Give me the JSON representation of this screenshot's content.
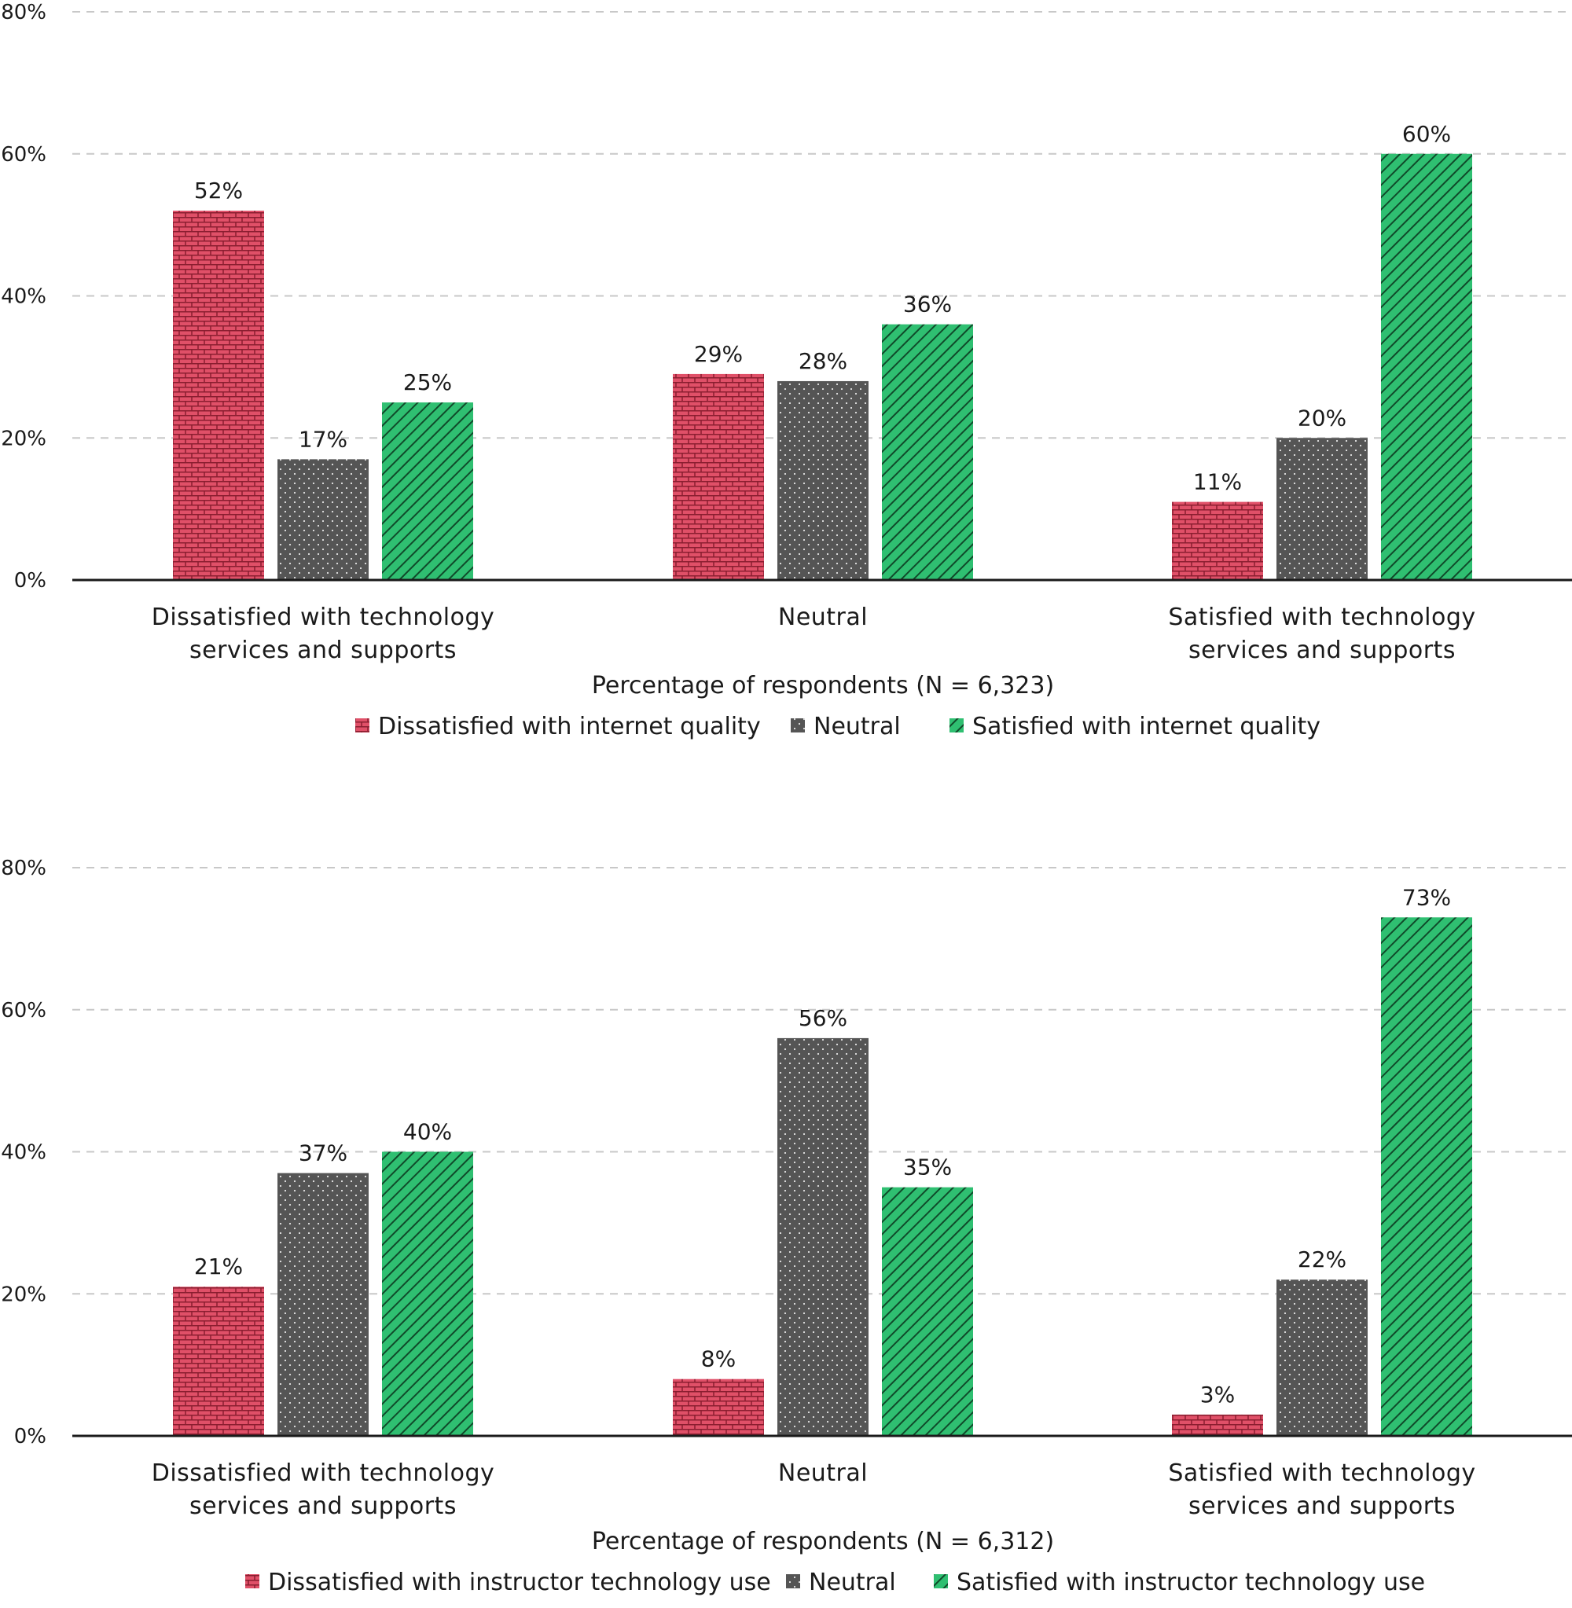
{
  "colors": {
    "dissatisfied": "#e05068",
    "neutral": "#555555",
    "satisfied": "#2fbf71",
    "dissatisfied_pattern": "#8a1e30",
    "neutral_pattern": "#e6e6e6",
    "satisfied_pattern": "#104a2a",
    "text": "#1a1a1a",
    "grid": "#c8c8c8"
  },
  "chart_data": [
    {
      "type": "bar",
      "categories": [
        [
          "Dissatisfied with technology",
          "services and supports"
        ],
        [
          "Neutral"
        ],
        [
          "Satisfied with technology",
          "services and supports"
        ]
      ],
      "xlabel": "Percentage of respondents (N = 6,323)",
      "ylim": [
        0,
        80
      ],
      "yticks": [
        "0%",
        "20%",
        "40%",
        "60%",
        "80%"
      ],
      "grid": true,
      "legend_position": "bottom",
      "series": [
        {
          "name": "Dissatisfied with internet quality",
          "key": "dissatisfied",
          "values": [
            52,
            29,
            11
          ],
          "labels": [
            "52%",
            "29%",
            "11%"
          ]
        },
        {
          "name": "Neutral",
          "key": "neutral",
          "values": [
            17,
            28,
            20
          ],
          "labels": [
            "17%",
            "28%",
            "20%"
          ]
        },
        {
          "name": "Satisfied with internet quality",
          "key": "satisfied",
          "values": [
            25,
            36,
            60
          ],
          "labels": [
            "25%",
            "36%",
            "60%"
          ]
        }
      ]
    },
    {
      "type": "bar",
      "categories": [
        [
          "Dissatisfied with technology",
          "services and supports"
        ],
        [
          "Neutral"
        ],
        [
          "Satisfied with technology",
          "services and supports"
        ]
      ],
      "xlabel": "Percentage of respondents (N = 6,312)",
      "ylim": [
        0,
        80
      ],
      "yticks": [
        "0%",
        "20%",
        "40%",
        "60%",
        "80%"
      ],
      "grid": true,
      "legend_position": "bottom",
      "series": [
        {
          "name": "Dissatisfied with instructor technology use",
          "key": "dissatisfied",
          "values": [
            21,
            8,
            3
          ],
          "labels": [
            "21%",
            "8%",
            "3%"
          ]
        },
        {
          "name": "Neutral",
          "key": "neutral",
          "values": [
            37,
            56,
            22
          ],
          "labels": [
            "37%",
            "56%",
            "22%"
          ]
        },
        {
          "name": "Satisfied with instructor technology use",
          "key": "satisfied",
          "values": [
            40,
            35,
            73
          ],
          "labels": [
            "40%",
            "35%",
            "73%"
          ]
        }
      ]
    }
  ]
}
